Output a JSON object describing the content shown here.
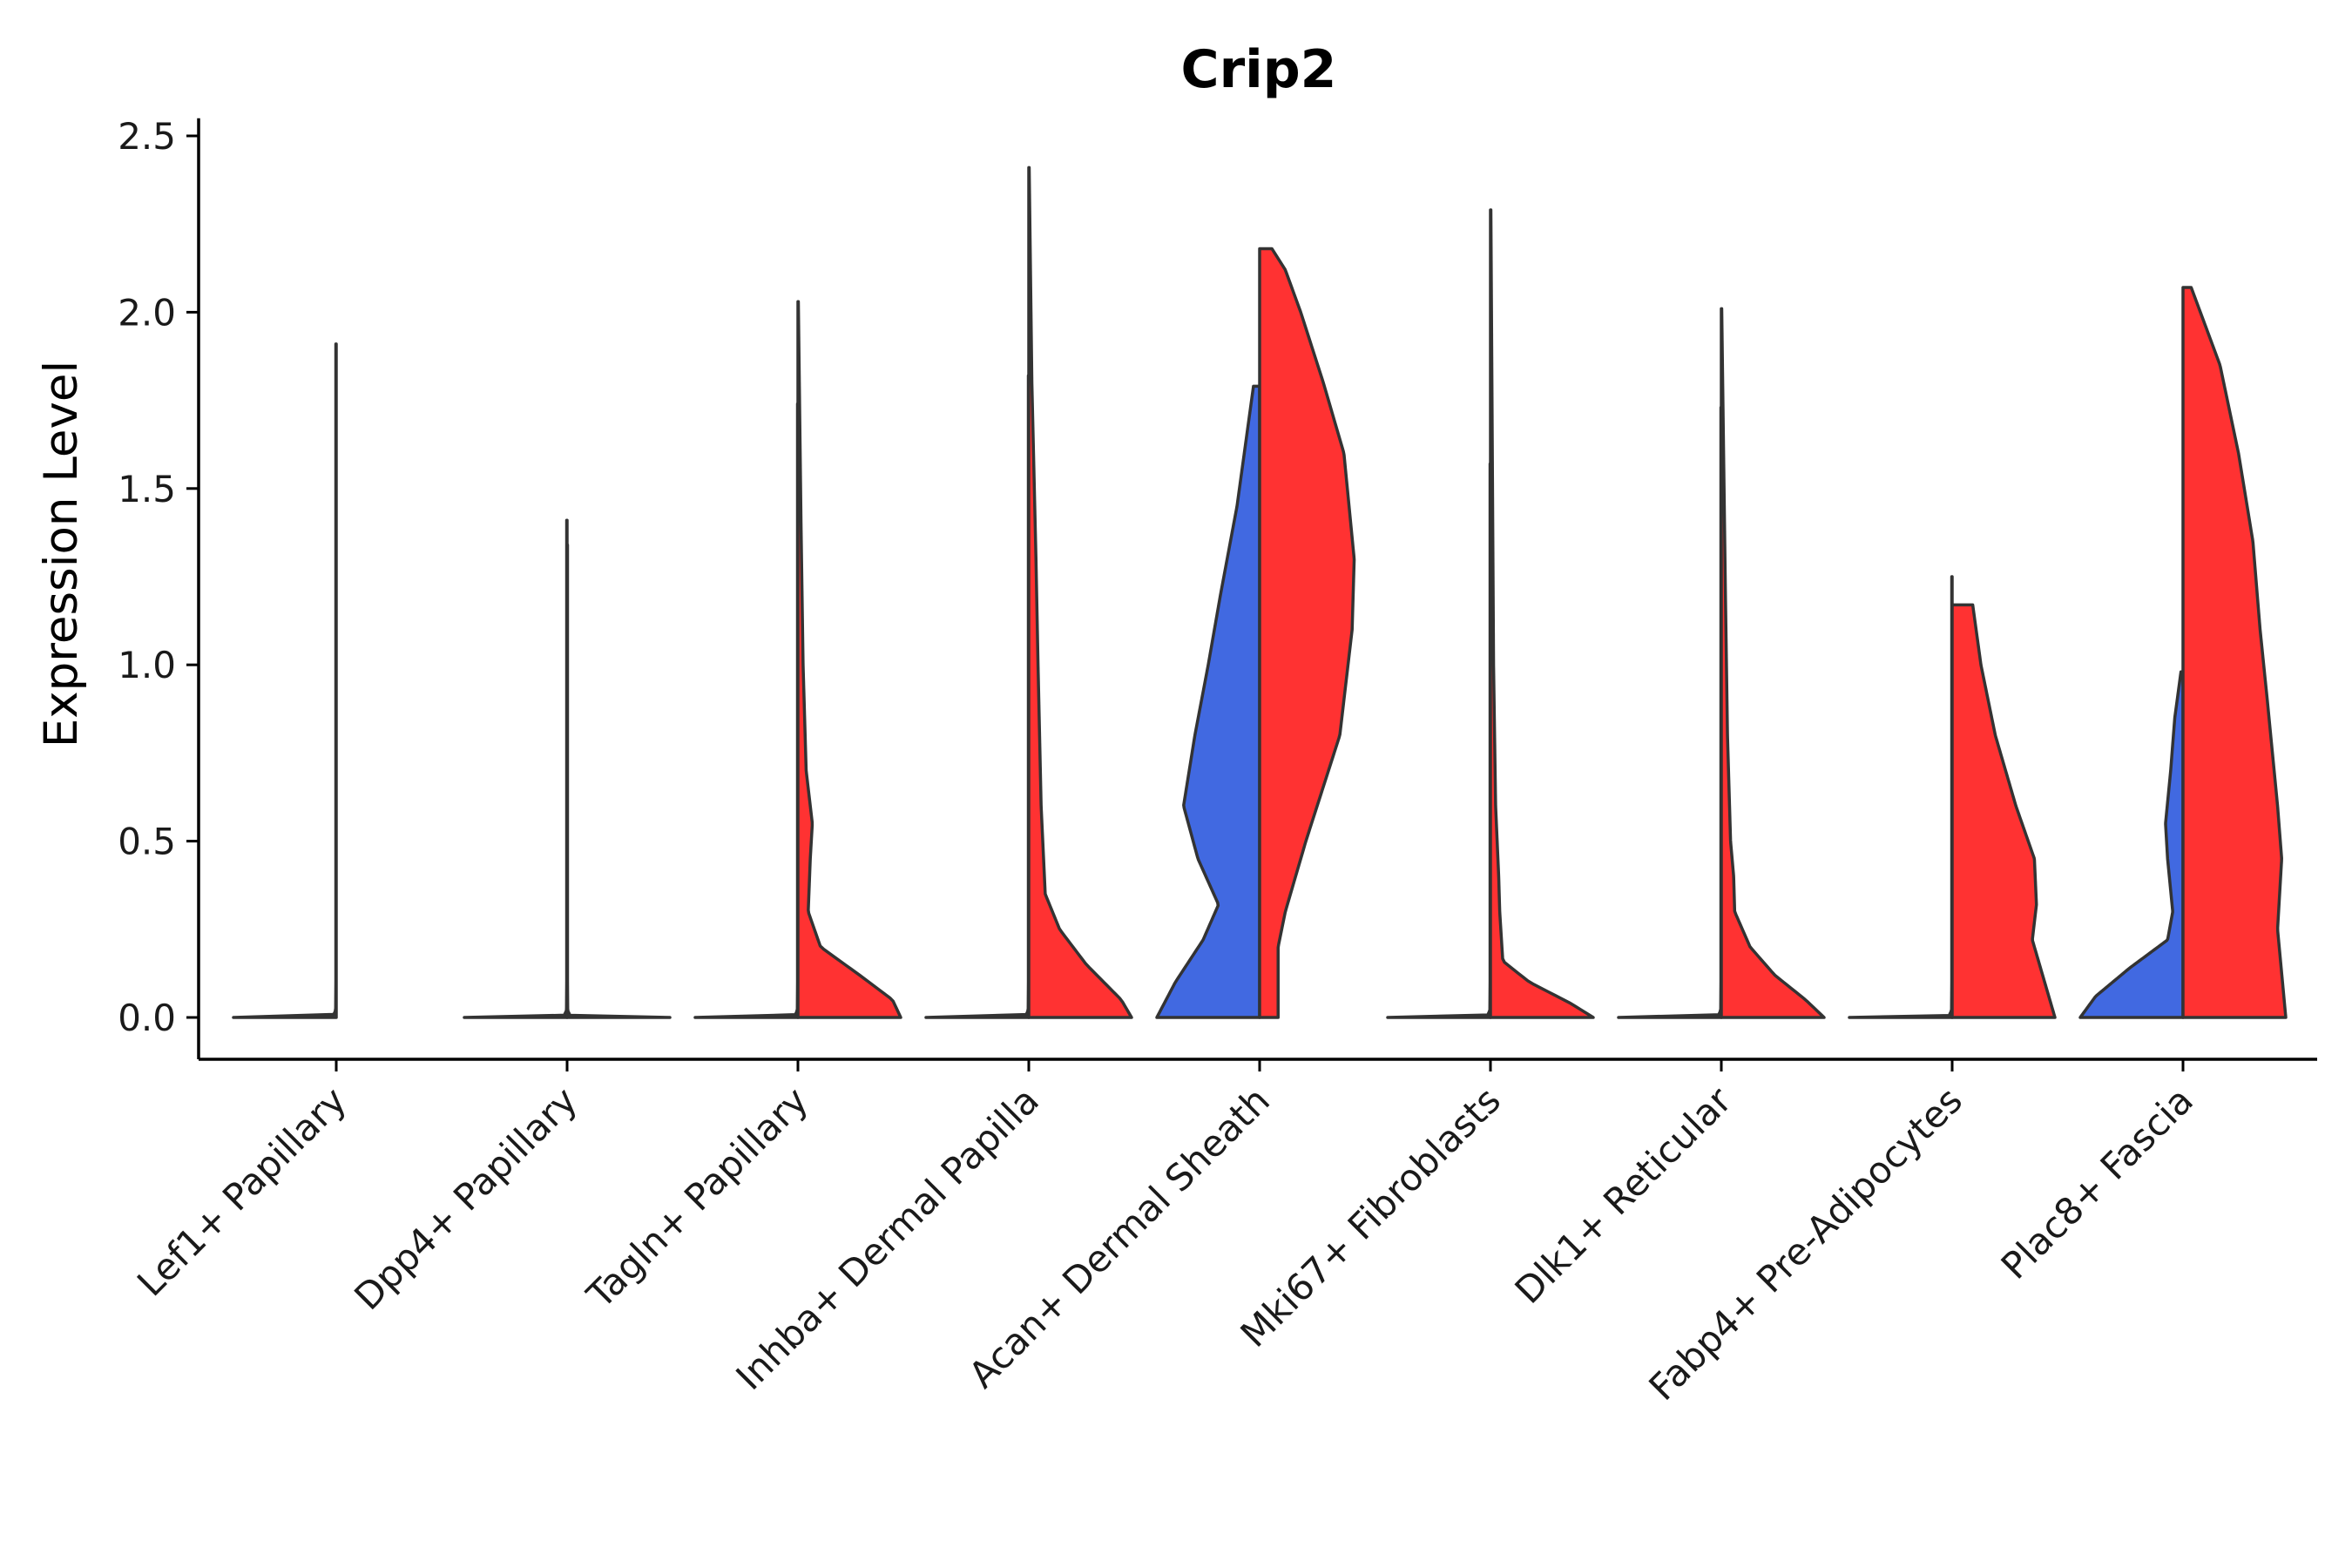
{
  "chart_data": {
    "type": "violin",
    "title": "Crip2",
    "xlabel": "",
    "ylabel": "Expression Level",
    "ylim": [
      -0.12,
      2.55
    ],
    "yticks": [
      0.0,
      0.5,
      1.0,
      1.5,
      2.0,
      2.5
    ],
    "ytick_labels": [
      "0.0",
      "0.5",
      "1.0",
      "1.5",
      "2.0",
      "2.5"
    ],
    "groups": [
      "group-1",
      "group-2"
    ],
    "colors": {
      "group-1": "#4169E1",
      "group-2": "#FF3232"
    },
    "categories": [
      "Lef1+ Papillary",
      "Dpp4+ Papillary",
      "Tagln+ Papillary",
      "Inhba+ Dermal Papilla",
      "Acan+ Dermal Sheath",
      "Mki67+ Fibroblasts",
      "Dlk1+ Reticular",
      "Fabp4+ Pre-Adipocytes",
      "Plac8+ Fascia"
    ],
    "violins": [
      {
        "category": 0,
        "split": "left",
        "group": "group-1",
        "max": 1.91,
        "profile": [
          [
            0,
            1
          ],
          [
            0.005,
            0.03
          ],
          [
            0.02,
            0.006
          ],
          [
            0.1,
            0.004
          ],
          [
            1.91,
            0.004
          ]
        ]
      },
      {
        "category": 0,
        "split": "right",
        "group": "group-2",
        "max": 0.0,
        "profile": [
          [
            0,
            1
          ]
        ]
      },
      {
        "category": 1,
        "split": "left",
        "group": "group-1",
        "max": 1.41,
        "profile": [
          [
            0,
            1
          ],
          [
            0.005,
            0.03
          ],
          [
            0.02,
            0.006
          ],
          [
            0.1,
            0.004
          ],
          [
            1.41,
            0.004
          ]
        ]
      },
      {
        "category": 1,
        "split": "right",
        "group": "group-2",
        "max": 1.34,
        "profile": [
          [
            0,
            1
          ],
          [
            0.005,
            0.03
          ],
          [
            0.02,
            0.006
          ],
          [
            0.1,
            0.004
          ],
          [
            1.34,
            0.004
          ]
        ]
      },
      {
        "category": 2,
        "split": "left",
        "group": "group-1",
        "max": 1.74,
        "profile": [
          [
            0,
            1
          ],
          [
            0.005,
            0.03
          ],
          [
            0.02,
            0.006
          ],
          [
            0.1,
            0.004
          ],
          [
            1.74,
            0.004
          ]
        ]
      },
      {
        "category": 2,
        "split": "right",
        "group": "group-2",
        "max": 2.03,
        "profile": [
          [
            0,
            1
          ],
          [
            0.05,
            0.92
          ],
          [
            0.12,
            0.6
          ],
          [
            0.2,
            0.22
          ],
          [
            0.3,
            0.1
          ],
          [
            0.45,
            0.12
          ],
          [
            0.55,
            0.14
          ],
          [
            0.7,
            0.08
          ],
          [
            1.0,
            0.05
          ],
          [
            1.4,
            0.03
          ],
          [
            2.03,
            0.004
          ]
        ]
      },
      {
        "category": 3,
        "split": "left",
        "group": "group-1",
        "max": 1.82,
        "profile": [
          [
            0,
            1
          ],
          [
            0.005,
            0.03
          ],
          [
            0.02,
            0.006
          ],
          [
            0.1,
            0.004
          ],
          [
            1.82,
            0.004
          ]
        ]
      },
      {
        "category": 3,
        "split": "right",
        "group": "group-2",
        "max": 2.41,
        "profile": [
          [
            0,
            1
          ],
          [
            0.05,
            0.9
          ],
          [
            0.15,
            0.56
          ],
          [
            0.25,
            0.3
          ],
          [
            0.35,
            0.16
          ],
          [
            0.6,
            0.12
          ],
          [
            1.0,
            0.09
          ],
          [
            1.3,
            0.07
          ],
          [
            1.8,
            0.03
          ],
          [
            2.41,
            0.004
          ]
        ]
      },
      {
        "category": 4,
        "split": "left",
        "group": "group-1",
        "max": 1.79,
        "profile": [
          [
            0,
            1
          ],
          [
            0.1,
            0.82
          ],
          [
            0.22,
            0.55
          ],
          [
            0.32,
            0.4
          ],
          [
            0.45,
            0.6
          ],
          [
            0.6,
            0.74
          ],
          [
            0.8,
            0.63
          ],
          [
            1.0,
            0.5
          ],
          [
            1.2,
            0.38
          ],
          [
            1.45,
            0.22
          ],
          [
            1.79,
            0.06
          ]
        ]
      },
      {
        "category": 4,
        "split": "right",
        "group": "group-2",
        "max": 2.18,
        "profile": [
          [
            0,
            0.18
          ],
          [
            0.2,
            0.18
          ],
          [
            0.3,
            0.25
          ],
          [
            0.5,
            0.45
          ],
          [
            0.8,
            0.78
          ],
          [
            1.1,
            0.9
          ],
          [
            1.3,
            0.92
          ],
          [
            1.6,
            0.82
          ],
          [
            1.8,
            0.62
          ],
          [
            2.0,
            0.4
          ],
          [
            2.12,
            0.25
          ],
          [
            2.18,
            0.12
          ]
        ]
      },
      {
        "category": 5,
        "split": "left",
        "group": "group-1",
        "max": 1.57,
        "profile": [
          [
            0,
            1
          ],
          [
            0.005,
            0.03
          ],
          [
            0.02,
            0.006
          ],
          [
            0.1,
            0.004
          ],
          [
            1.57,
            0.004
          ]
        ]
      },
      {
        "category": 5,
        "split": "right",
        "group": "group-2",
        "max": 2.29,
        "profile": [
          [
            0,
            1
          ],
          [
            0.04,
            0.78
          ],
          [
            0.1,
            0.38
          ],
          [
            0.16,
            0.12
          ],
          [
            0.3,
            0.09
          ],
          [
            0.4,
            0.08
          ],
          [
            0.6,
            0.05
          ],
          [
            1.0,
            0.03
          ],
          [
            1.5,
            0.02
          ],
          [
            2.29,
            0.004
          ]
        ]
      },
      {
        "category": 6,
        "split": "left",
        "group": "group-1",
        "max": 1.73,
        "profile": [
          [
            0,
            1
          ],
          [
            0.005,
            0.03
          ],
          [
            0.02,
            0.006
          ],
          [
            0.1,
            0.004
          ],
          [
            1.73,
            0.004
          ]
        ]
      },
      {
        "category": 6,
        "split": "right",
        "group": "group-2",
        "max": 2.01,
        "profile": [
          [
            0,
            1
          ],
          [
            0.05,
            0.82
          ],
          [
            0.12,
            0.52
          ],
          [
            0.2,
            0.28
          ],
          [
            0.3,
            0.13
          ],
          [
            0.4,
            0.12
          ],
          [
            0.5,
            0.09
          ],
          [
            0.8,
            0.06
          ],
          [
            1.2,
            0.04
          ],
          [
            2.01,
            0.004
          ]
        ]
      },
      {
        "category": 7,
        "split": "left",
        "group": "group-1",
        "max": 1.25,
        "profile": [
          [
            0,
            1
          ],
          [
            0.005,
            0.03
          ],
          [
            0.02,
            0.006
          ],
          [
            0.1,
            0.004
          ],
          [
            1.25,
            0.004
          ]
        ]
      },
      {
        "category": 7,
        "split": "right",
        "group": "group-2",
        "max": 1.17,
        "profile": [
          [
            0,
            1
          ],
          [
            0.1,
            0.9
          ],
          [
            0.22,
            0.78
          ],
          [
            0.32,
            0.82
          ],
          [
            0.45,
            0.8
          ],
          [
            0.6,
            0.62
          ],
          [
            0.8,
            0.42
          ],
          [
            1.0,
            0.28
          ],
          [
            1.17,
            0.2
          ]
        ]
      },
      {
        "category": 8,
        "split": "left",
        "group": "group-1",
        "max": 0.98,
        "profile": [
          [
            0,
            1
          ],
          [
            0.06,
            0.85
          ],
          [
            0.14,
            0.52
          ],
          [
            0.22,
            0.15
          ],
          [
            0.3,
            0.1
          ],
          [
            0.45,
            0.15
          ],
          [
            0.55,
            0.17
          ],
          [
            0.7,
            0.12
          ],
          [
            0.85,
            0.08
          ],
          [
            0.98,
            0.02
          ]
        ]
      },
      {
        "category": 8,
        "split": "right",
        "group": "group-2",
        "max": 2.07,
        "profile": [
          [
            0,
            1
          ],
          [
            0.25,
            0.92
          ],
          [
            0.45,
            0.96
          ],
          [
            0.6,
            0.92
          ],
          [
            0.9,
            0.82
          ],
          [
            1.1,
            0.75
          ],
          [
            1.35,
            0.68
          ],
          [
            1.6,
            0.54
          ],
          [
            1.85,
            0.36
          ],
          [
            2.07,
            0.08
          ]
        ]
      }
    ]
  }
}
